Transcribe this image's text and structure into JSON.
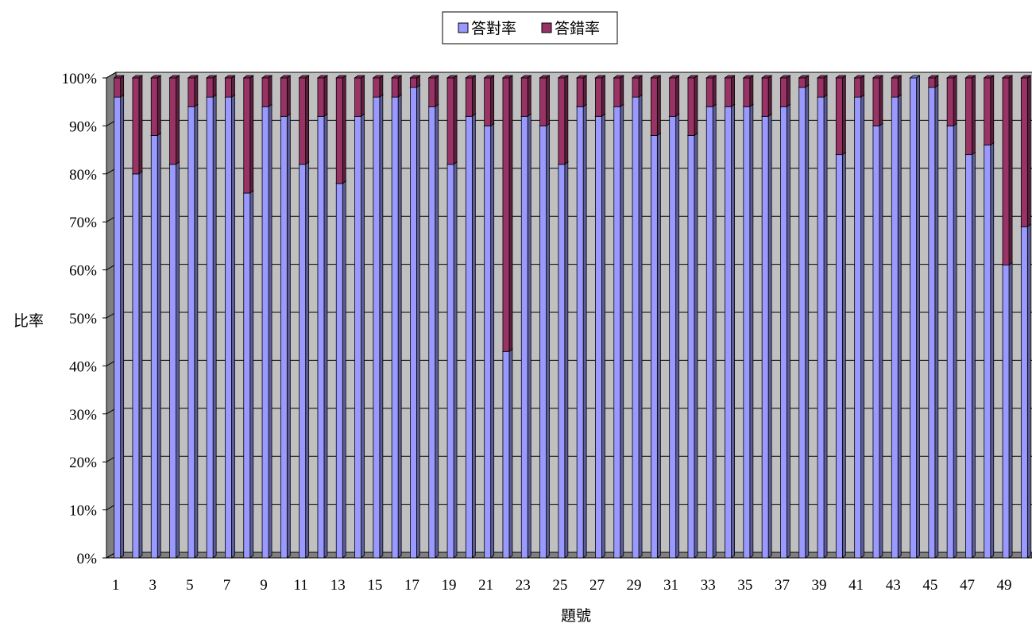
{
  "chart_data": {
    "type": "bar",
    "stacked": true,
    "percent_stacked": true,
    "three_d": true,
    "xlabel": "題號",
    "ylabel": "比率",
    "x": [
      1,
      2,
      3,
      4,
      5,
      6,
      7,
      8,
      9,
      10,
      11,
      12,
      13,
      14,
      15,
      16,
      17,
      18,
      19,
      20,
      21,
      22,
      23,
      24,
      25,
      26,
      27,
      28,
      29,
      30,
      31,
      32,
      33,
      34,
      35,
      36,
      37,
      38,
      39,
      40,
      41,
      42,
      43,
      44,
      45,
      46,
      47,
      48,
      49,
      50
    ],
    "x_tick_labels": [
      "1",
      "3",
      "5",
      "7",
      "9",
      "11",
      "13",
      "15",
      "17",
      "19",
      "21",
      "23",
      "25",
      "27",
      "29",
      "31",
      "33",
      "35",
      "37",
      "39",
      "41",
      "43",
      "45",
      "47",
      "49"
    ],
    "y_tick_labels": [
      "0%",
      "10%",
      "20%",
      "30%",
      "40%",
      "50%",
      "60%",
      "70%",
      "80%",
      "90%",
      "100%"
    ],
    "ylim": [
      0,
      100
    ],
    "y_unit": "%",
    "grid": true,
    "legend_position": "top-center",
    "series": [
      {
        "name": "答對率",
        "color": "#9999ff",
        "values": [
          96,
          80,
          88,
          82,
          94,
          96,
          96,
          76,
          94,
          92,
          82,
          92,
          78,
          92,
          96,
          96,
          98,
          94,
          82,
          92,
          90,
          43,
          92,
          90,
          82,
          94,
          92,
          94,
          96,
          88,
          92,
          88,
          94,
          94,
          94,
          92,
          94,
          98,
          96,
          84,
          96,
          90,
          96,
          100,
          98,
          90,
          84,
          86,
          61,
          69
        ]
      },
      {
        "name": "答錯率",
        "color": "#993366",
        "values": [
          4,
          20,
          12,
          18,
          6,
          4,
          4,
          24,
          6,
          8,
          18,
          8,
          22,
          8,
          4,
          4,
          2,
          6,
          18,
          8,
          10,
          57,
          8,
          10,
          18,
          6,
          8,
          6,
          4,
          12,
          8,
          12,
          6,
          6,
          6,
          8,
          6,
          2,
          4,
          16,
          4,
          10,
          4,
          0,
          2,
          10,
          16,
          14,
          39,
          31
        ]
      }
    ]
  }
}
